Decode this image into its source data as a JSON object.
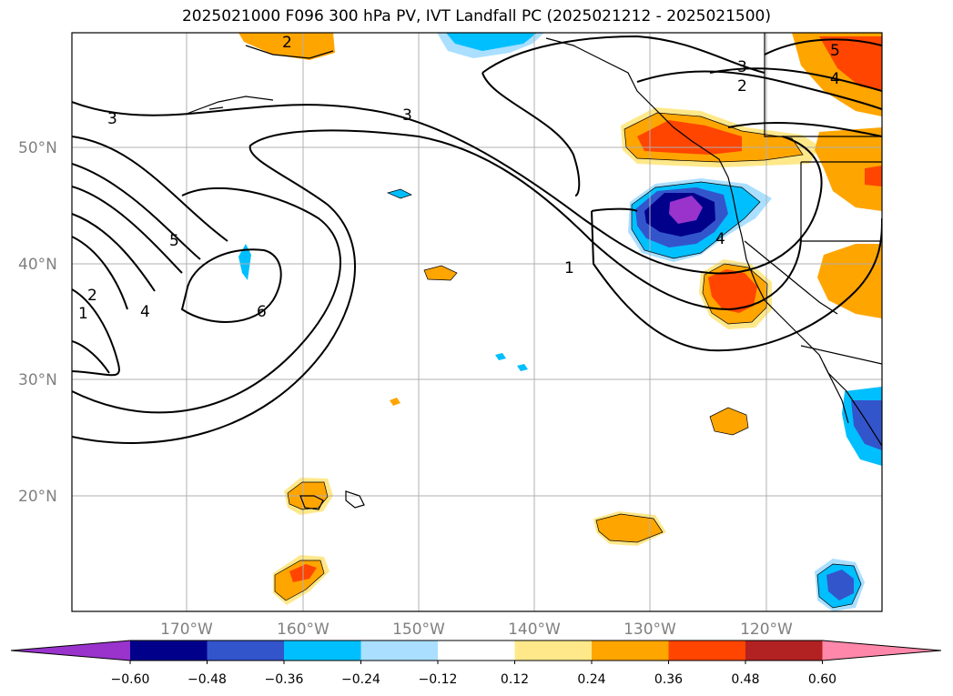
{
  "title": "2025021000 F096 300 hPa PV, IVT Landfall PC (2025021212 - 2025021500)",
  "lat_labels": [
    "50°N",
    "40°N",
    "30°N",
    "20°N"
  ],
  "lon_labels": [
    "170°W",
    "160°W",
    "150°W",
    "140°W",
    "130°W",
    "120°W"
  ],
  "colorbar": {
    "ticks": [
      "−0.60",
      "−0.48",
      "−0.36",
      "−0.24",
      "−0.12",
      "0.12",
      "0.24",
      "0.36",
      "0.48",
      "0.60"
    ],
    "colors": [
      "#9933cc",
      "#00008b",
      "#3355cc",
      "#00bfff",
      "#aadfff",
      "#ffffff",
      "#ffe88a",
      "#ffa500",
      "#ff4500",
      "#b22222",
      "#ff88aa"
    ]
  },
  "contour_labels": [
    "3",
    "3",
    "3",
    "2",
    "5",
    "4",
    "5",
    "4",
    "2",
    "1",
    "6",
    "1",
    "4",
    "2"
  ]
}
